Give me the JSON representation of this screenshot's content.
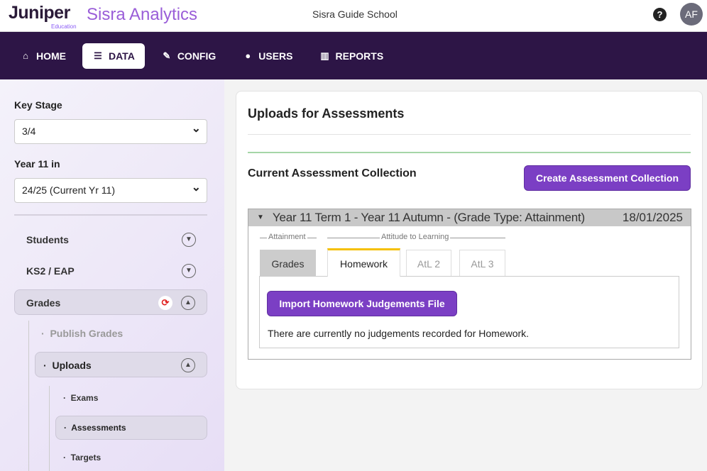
{
  "header": {
    "logo": "Juniper",
    "logo_sub": "Education",
    "app": "Sisra Analytics",
    "school": "Sisra Guide School",
    "help": "?",
    "avatar": "AF"
  },
  "nav": [
    {
      "label": "HOME",
      "icon": "home-icon"
    },
    {
      "label": "DATA",
      "icon": "database-icon",
      "active": true
    },
    {
      "label": "CONFIG",
      "icon": "wrench-icon"
    },
    {
      "label": "USERS",
      "icon": "users-icon"
    },
    {
      "label": "REPORTS",
      "icon": "bar-chart-icon"
    }
  ],
  "sidebar": {
    "key_stage_label": "Key Stage",
    "key_stage_value": "3/4",
    "year_label": "Year 11 in",
    "year_value": "24/25 (Current Yr 11)",
    "items": {
      "students": "Students",
      "ks2": "KS2 / EAP",
      "grades": "Grades",
      "publish": "Publish Grades",
      "uploads": "Uploads",
      "exams": "Exams",
      "assessments": "Assessments",
      "targets": "Targets"
    }
  },
  "main": {
    "title": "Uploads for Assessments",
    "current": "Current Assessment Collection",
    "create": "Create Assessment Collection",
    "collection": {
      "title": "Year 11 Term 1 - Year 11 Autumn - (Grade Type: Attainment)",
      "date": "18/01/2025"
    },
    "groups": {
      "attainment": "Attainment",
      "atl": "Attitude to Learning"
    },
    "tabs": [
      "Grades",
      "Homework",
      "AtL 2",
      "AtL 3"
    ],
    "import": "Import Homework Judgements File",
    "empty": "There are currently no judgements recorded for Homework."
  },
  "colors": {
    "nav": "#2d1546",
    "accent": "#7b3fc4",
    "active_tab": "#f5c000",
    "success_line": "#a5d6a7"
  }
}
